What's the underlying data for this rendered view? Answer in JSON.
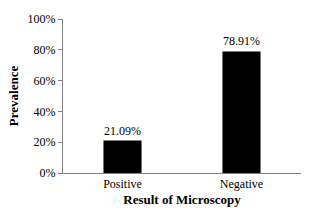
{
  "chart_data": {
    "type": "bar",
    "x_label": "Result of Microscopy",
    "y_label": "Prevalence",
    "categories": [
      "Positive",
      "Negative"
    ],
    "values": [
      21.09,
      78.91
    ],
    "value_labels": [
      "21.09%",
      "78.91%"
    ],
    "data_labels": true,
    "color": "#000000",
    "ylim": [
      0,
      100
    ],
    "yticks": [
      {
        "value": 0,
        "label": "0%"
      },
      {
        "value": 20,
        "label": "20%"
      },
      {
        "value": 40,
        "label": "40%"
      },
      {
        "value": 60,
        "label": "60%"
      },
      {
        "value": 80,
        "label": "80%"
      },
      {
        "value": 100,
        "label": "100%"
      }
    ],
    "grid": false
  }
}
